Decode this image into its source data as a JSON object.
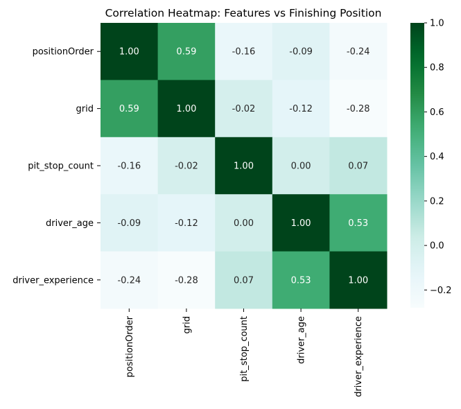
{
  "chart_data": {
    "type": "heatmap",
    "title": "Correlation Heatmap: Features vs Finishing Position",
    "rows": [
      "positionOrder",
      "grid",
      "pit_stop_count",
      "driver_age",
      "driver_experience"
    ],
    "columns": [
      "positionOrder",
      "grid",
      "pit_stop_count",
      "driver_age",
      "driver_experience"
    ],
    "values": [
      [
        1.0,
        0.59,
        -0.16,
        -0.09,
        -0.24
      ],
      [
        0.59,
        1.0,
        -0.02,
        -0.12,
        -0.28
      ],
      [
        -0.16,
        -0.02,
        1.0,
        0.0,
        0.07
      ],
      [
        -0.09,
        -0.12,
        0.0,
        1.0,
        0.53
      ],
      [
        -0.24,
        -0.28,
        0.07,
        0.53,
        1.0
      ]
    ],
    "value_format": "2 decimals",
    "colormap": "BuGn",
    "vmin": -0.28,
    "vmax": 1.0,
    "colorbar_ticks": [
      "1.0",
      "0.8",
      "0.6",
      "0.4",
      "0.2",
      "0.0",
      "−0.2"
    ],
    "colorbar_tick_values": [
      1.0,
      0.8,
      0.6,
      0.4,
      0.2,
      0.0,
      -0.2
    ]
  }
}
